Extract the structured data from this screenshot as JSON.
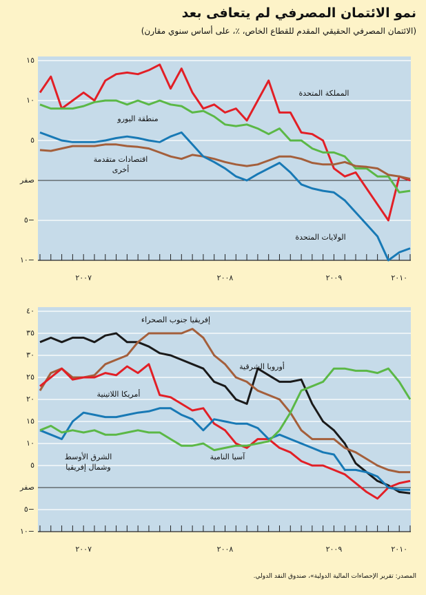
{
  "title": "نمو الائتمان المصرفي لم يتعافى بعد",
  "subtitle": "(الائتمان المصرفي الحقيقي المقدم للقطاع الخاص، ٪، على أساس سنوي مقارن)",
  "source": "المصدر: تقرير الإحصاءات المالية الدولية»، صندوق النقد الدولي.",
  "chart_data": [
    {
      "type": "line",
      "categories": [
        null,
        null,
        null,
        null,
        "٢٠٠٧",
        null,
        null,
        null,
        null,
        null,
        null,
        null,
        null,
        null,
        null,
        null,
        null,
        "٢٠٠٨",
        null,
        null,
        null,
        null,
        null,
        null,
        null,
        null,
        null,
        "٢٠٠٩",
        null,
        null,
        null,
        null,
        null,
        "٢٠١٠",
        null
      ],
      "ylim": [
        -10,
        15
      ],
      "yticks": [
        {
          "value": 15,
          "label": "١٥"
        },
        {
          "value": 10,
          "label": "١٠"
        },
        {
          "value": 5,
          "label": "٥"
        },
        {
          "value": 0,
          "label": "صفر"
        },
        {
          "value": -5,
          "label": "٥−"
        },
        {
          "value": -10,
          "label": "١٠−"
        }
      ],
      "grid": true,
      "series": [
        {
          "name": "المملكة المتحدة",
          "color": "#e21f26",
          "values": [
            11,
            13,
            9,
            10,
            11,
            10,
            12.5,
            13.3,
            13.5,
            13.3,
            13.8,
            14.5,
            11.5,
            14,
            11,
            9,
            9.5,
            8.5,
            9,
            7.5,
            10,
            12.5,
            8.5,
            8.5,
            6,
            5.8,
            5,
            1.5,
            0.5,
            1,
            -1,
            -3,
            -5,
            0.5,
            0
          ]
        },
        {
          "name": "منطقة اليورو",
          "color": "#5bb846",
          "values": [
            9.5,
            9,
            9,
            9,
            9.3,
            9.8,
            10,
            10,
            9.5,
            10,
            9.5,
            10,
            9.5,
            9.3,
            8.5,
            8.7,
            8,
            7,
            6.8,
            7,
            6.5,
            5.8,
            6.5,
            5,
            5,
            4,
            3.5,
            3.5,
            3,
            1.5,
            1.5,
            0.5,
            0.5,
            -1.5,
            -1.3
          ]
        },
        {
          "name": "اقتصادات متقدمة أخرى",
          "color": "#a45f3b",
          "values": [
            3.8,
            3.7,
            4,
            4.3,
            4.3,
            4.3,
            4.5,
            4.5,
            4.3,
            4.2,
            4,
            3.5,
            3,
            2.7,
            3.2,
            3,
            2.7,
            2.3,
            2,
            1.8,
            2,
            2.5,
            3,
            3,
            2.7,
            2.2,
            2,
            2,
            2.3,
            1.8,
            1.7,
            1.5,
            0.7,
            0.5,
            0.2
          ]
        },
        {
          "name": "الولايات المتحدة",
          "color": "#1879b5",
          "values": [
            6,
            5.5,
            5,
            4.8,
            4.8,
            4.8,
            5,
            5.3,
            5.5,
            5.3,
            5,
            4.8,
            5.5,
            6,
            4.5,
            3,
            2.3,
            1.5,
            0.5,
            0,
            0.8,
            1.5,
            2.2,
            1,
            -0.5,
            -1,
            -1.3,
            -1.5,
            -2.5,
            -4,
            -5.5,
            -7,
            -10,
            -9,
            -8.5
          ]
        }
      ]
    },
    {
      "type": "line",
      "categories": [
        null,
        null,
        null,
        null,
        "٢٠٠٧",
        null,
        null,
        null,
        null,
        null,
        null,
        null,
        null,
        null,
        null,
        null,
        null,
        "٢٠٠٨",
        null,
        null,
        null,
        null,
        null,
        null,
        null,
        null,
        null,
        "٢٠٠٩",
        null,
        null,
        null,
        null,
        null,
        "٢٠١٠",
        null
      ],
      "ylim": [
        -10,
        40
      ],
      "yticks": [
        {
          "value": 40,
          "label": "٤٠"
        },
        {
          "value": 35,
          "label": "٣٥"
        },
        {
          "value": 30,
          "label": "٣٠"
        },
        {
          "value": 25,
          "label": "٢٥"
        },
        {
          "value": 20,
          "label": "٢٠"
        },
        {
          "value": 15,
          "label": "١٥"
        },
        {
          "value": 10,
          "label": "١٠"
        },
        {
          "value": 5,
          "label": "٥"
        },
        {
          "value": 0,
          "label": "صفر"
        },
        {
          "value": -5,
          "label": "٥−"
        },
        {
          "value": -10,
          "label": "١٠−"
        }
      ],
      "grid": true,
      "series": [
        {
          "name": "إفريقيا جنوب الصحراء",
          "color": "#1a1a1a",
          "values": [
            33,
            34,
            33,
            34,
            34,
            33,
            34.5,
            35,
            33,
            33,
            32,
            30.5,
            30,
            29,
            28,
            27,
            24,
            23,
            20,
            19,
            27,
            25.5,
            24,
            24,
            24.5,
            19,
            15,
            13,
            10,
            5.5,
            3.5,
            1.5,
            0.5,
            -1,
            -1.3
          ]
        },
        {
          "name": "أوروبا الشرقية",
          "color": "#a45f3b",
          "values": [
            22,
            26,
            27,
            25,
            25,
            25.5,
            28,
            29,
            30,
            33,
            35,
            35,
            35,
            35,
            36,
            34,
            30,
            28,
            25,
            24,
            22,
            21,
            20,
            17,
            13,
            11,
            11,
            11,
            9,
            8,
            6.5,
            5,
            4,
            3.5,
            3.5
          ]
        },
        {
          "name": "أمريكا اللاتينية",
          "color": "#e21f26",
          "values": [
            23,
            25,
            27,
            24.5,
            25,
            25,
            26,
            25.5,
            27.5,
            26,
            28,
            21,
            20.5,
            19,
            17.5,
            18,
            14.5,
            13,
            10,
            9,
            11,
            11,
            9,
            8,
            6,
            5,
            5,
            4,
            3,
            1,
            -1,
            -2.5,
            0,
            1,
            1.5
          ]
        },
        {
          "name": "الشرق الأوسط وشمال إفريقيا",
          "color": "#1879b5",
          "values": [
            13,
            12,
            11,
            15,
            17,
            16.5,
            16,
            16,
            16.5,
            17,
            17.3,
            18,
            18,
            16.5,
            15.5,
            13,
            15.5,
            15,
            14.5,
            14.5,
            13.5,
            11,
            12,
            11,
            10,
            9,
            8,
            7.5,
            4,
            4,
            3.5,
            2.5,
            0,
            -0.5,
            -0.5
          ]
        },
        {
          "name": "آسيا النامية",
          "color": "#5bb846",
          "values": [
            13,
            14,
            12.5,
            13,
            12.5,
            13,
            12,
            12,
            12.5,
            13,
            12.5,
            12.5,
            11,
            9.5,
            9.5,
            10,
            8.5,
            9,
            9.5,
            9.5,
            10,
            10.5,
            13,
            17,
            22,
            23,
            24,
            27,
            27,
            26.5,
            26.5,
            26,
            27,
            24,
            20
          ]
        }
      ]
    }
  ]
}
